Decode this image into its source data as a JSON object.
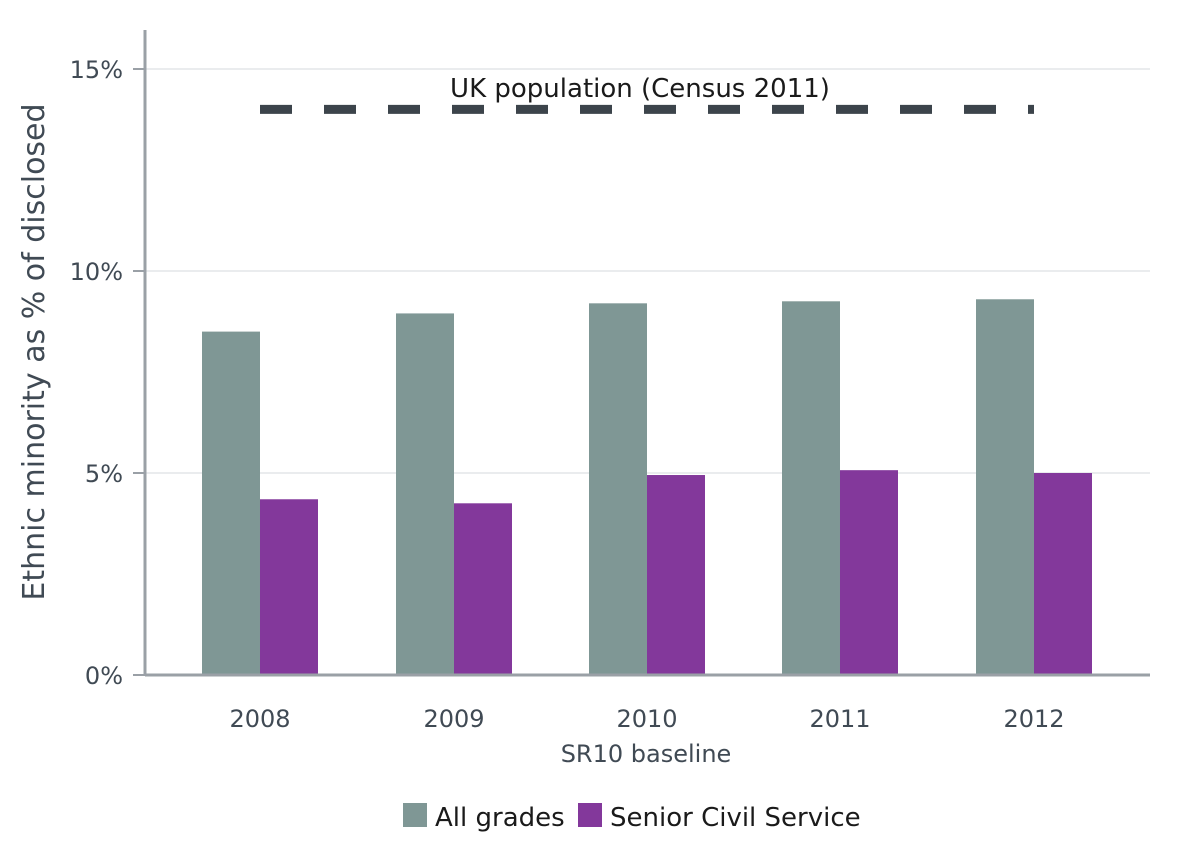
{
  "chart_data": {
    "type": "bar",
    "categories": [
      "2008",
      "2009",
      "2010",
      "2011",
      "2012"
    ],
    "category_sublabel": "SR10 baseline",
    "series": [
      {
        "name": "All grades",
        "values": [
          8.5,
          8.95,
          9.2,
          9.25,
          9.3
        ],
        "color": "#7f9795"
      },
      {
        "name": "Senior Civil Service",
        "values": [
          4.35,
          4.25,
          4.95,
          5.07,
          5.0
        ],
        "color": "#83389b"
      }
    ],
    "reference_line": {
      "label": "UK population (Census 2011)",
      "value": 14.0,
      "color": "#3c444b"
    },
    "ylabel": "Ethnic minority as % of disclosed",
    "xlabel": "",
    "ylim": [
      0,
      15
    ],
    "yticks": [
      0,
      5,
      10,
      15
    ],
    "ytick_labels": [
      "0%",
      "5%",
      "10%",
      "15%"
    ],
    "grid": true,
    "legend_position": "bottom"
  }
}
